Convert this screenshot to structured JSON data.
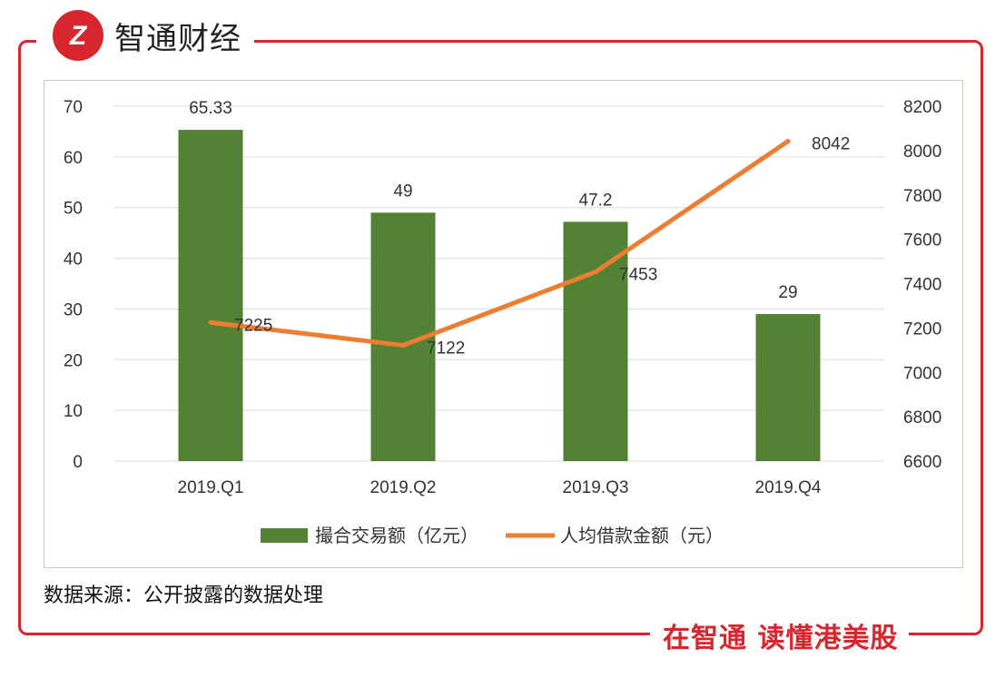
{
  "brand": {
    "name": "智通财经",
    "logo_letter": "Z"
  },
  "slogan": "在智通 读懂港美股",
  "source": "数据来源：公开披露的数据处理",
  "colors": {
    "frame": "#d7262d",
    "bar": "#548235",
    "line": "#ed7d31",
    "grid": "#d9d9d9",
    "text": "#333333"
  },
  "chart_data": {
    "type": "bar",
    "categories": [
      "2019.Q1",
      "2019.Q2",
      "2019.Q3",
      "2019.Q4"
    ],
    "series": [
      {
        "name": "撮合交易额（亿元）",
        "type": "bar",
        "axis": "left",
        "values": [
          65.33,
          49,
          47.2,
          29
        ],
        "labels": [
          "65.33",
          "49",
          "47.2",
          "29"
        ]
      },
      {
        "name": "人均借款金额（元）",
        "type": "line",
        "axis": "right",
        "values": [
          7225,
          7122,
          7453,
          8042
        ],
        "labels": [
          "7225",
          "7122",
          "7453",
          "8042"
        ]
      }
    ],
    "left_axis": {
      "min": 0,
      "max": 70,
      "ticks": [
        "0",
        "10",
        "20",
        "30",
        "40",
        "50",
        "60",
        "70"
      ]
    },
    "right_axis": {
      "min": 6600,
      "max": 8200,
      "ticks": [
        "6600",
        "6800",
        "7000",
        "7200",
        "7400",
        "7600",
        "7800",
        "8000",
        "8200"
      ]
    },
    "grid": true,
    "legend": "bottom-center"
  }
}
